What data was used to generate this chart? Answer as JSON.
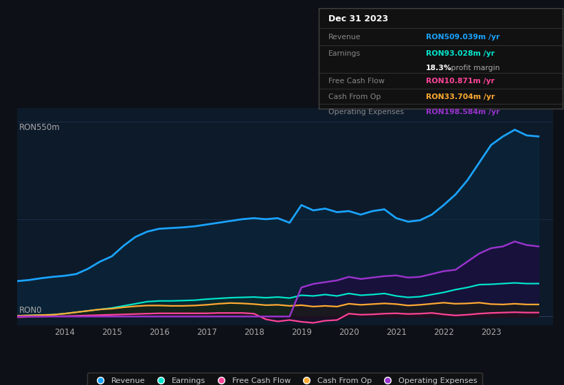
{
  "bg_color": "#0d1117",
  "plot_bg_color": "#0d1a2a",
  "title": "Dec 31 2023",
  "y_label_top": "RON550m",
  "y_label_bottom": "RON0",
  "ylim": [
    -25,
    590
  ],
  "xlim": [
    2013.0,
    2024.3
  ],
  "revenue_color": "#1aa3ff",
  "earnings_color": "#00e5cc",
  "fcf_color": "#ff4499",
  "cashop_color": "#ffaa33",
  "opex_color": "#9933cc",
  "revenue_label": "Revenue",
  "earnings_label": "Earnings",
  "fcf_label": "Free Cash Flow",
  "cashop_label": "Cash From Op",
  "opex_label": "Operating Expenses",
  "info_title": "Dec 31 2023",
  "info_revenue_label": "Revenue",
  "info_revenue_value": "RON509.039m /yr",
  "info_earnings_label": "Earnings",
  "info_earnings_value": "RON93.028m /yr",
  "info_margin": "18.3%",
  "info_margin_text": " profit margin",
  "info_fcf_label": "Free Cash Flow",
  "info_fcf_value": "RON10.871m /yr",
  "info_cashop_label": "Cash From Op",
  "info_cashop_value": "RON33.704m /yr",
  "info_opex_label": "Operating Expenses",
  "info_opex_value": "RON198.584m /yr",
  "years": [
    2013.0,
    2013.25,
    2013.5,
    2013.75,
    2014.0,
    2014.25,
    2014.5,
    2014.75,
    2015.0,
    2015.25,
    2015.5,
    2015.75,
    2016.0,
    2016.25,
    2016.5,
    2016.75,
    2017.0,
    2017.25,
    2017.5,
    2017.75,
    2018.0,
    2018.25,
    2018.5,
    2018.75,
    2019.0,
    2019.25,
    2019.5,
    2019.75,
    2020.0,
    2020.25,
    2020.5,
    2020.75,
    2021.0,
    2021.25,
    2021.5,
    2021.75,
    2022.0,
    2022.25,
    2022.5,
    2022.75,
    2023.0,
    2023.25,
    2023.5,
    2023.75,
    2024.0
  ],
  "revenue": [
    100,
    103,
    108,
    112,
    115,
    120,
    135,
    155,
    170,
    200,
    225,
    240,
    248,
    250,
    252,
    255,
    260,
    265,
    270,
    275,
    278,
    275,
    278,
    265,
    315,
    300,
    305,
    295,
    298,
    288,
    298,
    303,
    278,
    268,
    272,
    288,
    315,
    345,
    385,
    435,
    485,
    509,
    528,
    512,
    509
  ],
  "earnings": [
    2,
    3,
    4,
    5,
    8,
    12,
    16,
    20,
    24,
    30,
    36,
    42,
    44,
    44,
    45,
    46,
    49,
    51,
    53,
    54,
    55,
    53,
    55,
    52,
    60,
    58,
    62,
    58,
    65,
    60,
    62,
    65,
    58,
    54,
    56,
    62,
    68,
    76,
    82,
    90,
    91,
    93,
    95,
    93,
    93
  ],
  "fcf": [
    -2,
    -1,
    0,
    1,
    1,
    2,
    3,
    4,
    5,
    6,
    7,
    8,
    9,
    9,
    9,
    9,
    9,
    10,
    10,
    10,
    8,
    -8,
    -14,
    -10,
    -15,
    -18,
    -12,
    -10,
    8,
    5,
    6,
    8,
    9,
    7,
    8,
    10,
    6,
    3,
    5,
    8,
    10,
    11,
    12,
    11,
    11
  ],
  "cashop": [
    2,
    3,
    4,
    5,
    8,
    12,
    16,
    20,
    22,
    26,
    29,
    31,
    31,
    30,
    30,
    31,
    33,
    36,
    38,
    37,
    35,
    32,
    33,
    30,
    32,
    28,
    30,
    28,
    36,
    33,
    35,
    37,
    35,
    31,
    33,
    36,
    39,
    36,
    37,
    39,
    35,
    34,
    36,
    34,
    34
  ],
  "opex": [
    0,
    0,
    0,
    0,
    0,
    0,
    0,
    0,
    0,
    0,
    0,
    0,
    0,
    0,
    0,
    0,
    0,
    0,
    0,
    0,
    0,
    0,
    0,
    0,
    82,
    92,
    97,
    102,
    112,
    106,
    110,
    114,
    116,
    110,
    112,
    120,
    128,
    132,
    155,
    178,
    193,
    198,
    212,
    202,
    198
  ]
}
